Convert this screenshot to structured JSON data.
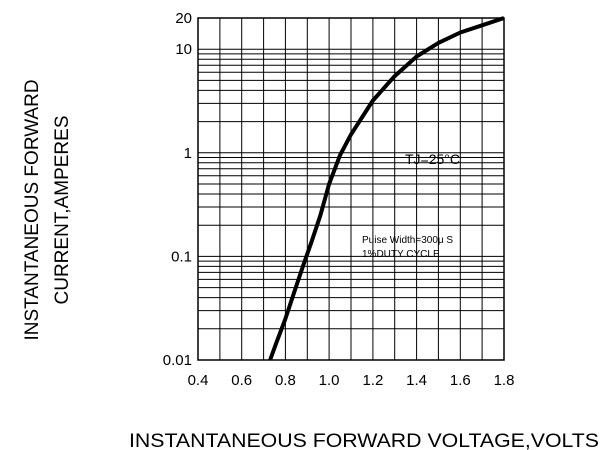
{
  "chart_data": {
    "type": "line",
    "title": "",
    "xlabel": "INSTANTANEOUS FORWARD VOLTAGE,VOLTS",
    "ylabel_lines": [
      "INSTANTANEOUS FORWARD",
      "CURRENT,AMPERES"
    ],
    "xlim": [
      0.4,
      1.8
    ],
    "ylim": [
      0.01,
      20
    ],
    "y_scale": "log",
    "grid": true,
    "x_ticks": [
      "0.4",
      "0.6",
      "0.8",
      "1.0",
      "1.2",
      "1.4",
      "1.6",
      "1.8"
    ],
    "y_ticks": [
      {
        "value": 0.01,
        "label": "0.01"
      },
      {
        "value": 0.1,
        "label": "0.1"
      },
      {
        "value": 1,
        "label": "1"
      },
      {
        "value": 10,
        "label": "10"
      },
      {
        "value": 20,
        "label": "20"
      }
    ],
    "annotations": {
      "tj": "TJ=25°C",
      "pulse_line1": "Puise Width=300μ S",
      "pulse_line2": "1%DUTY CYCLE"
    },
    "series": [
      {
        "x": [
          0.73,
          0.76,
          0.8,
          0.84,
          0.88,
          0.92,
          0.96,
          1.0,
          1.05,
          1.1,
          1.2,
          1.3,
          1.4,
          1.5,
          1.6,
          1.7,
          1.8
        ],
        "y": [
          0.01,
          0.015,
          0.025,
          0.045,
          0.08,
          0.14,
          0.25,
          0.5,
          0.95,
          1.5,
          3.2,
          5.5,
          8.5,
          11.5,
          14.5,
          17.0,
          20.0
        ]
      }
    ]
  }
}
